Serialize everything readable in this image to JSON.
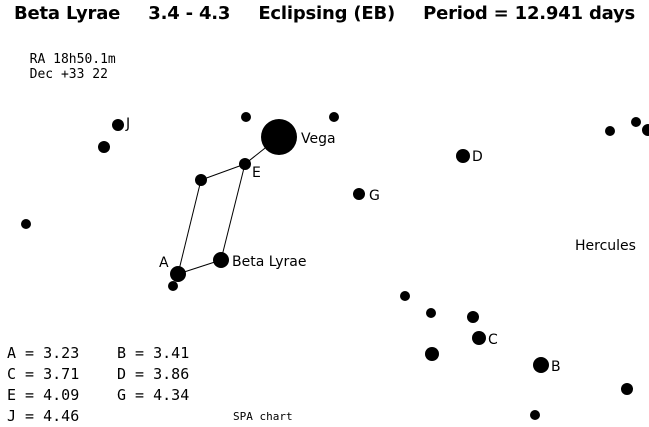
{
  "header": {
    "star_name": "Beta Lyrae",
    "mag_range": "3.4 - 4.3",
    "variable_type": "Eclipsing (EB)",
    "period": "Period = 12.941 days"
  },
  "coords": {
    "ra": "RA 18h50.1m",
    "dec": "Dec +33 22"
  },
  "chart": {
    "labels": {
      "vega": "Vega",
      "beta_lyrae": "Beta Lyrae",
      "hercules": "Hercules",
      "a": "A",
      "b": "B",
      "c": "C",
      "d": "D",
      "e": "E",
      "g": "G",
      "j": "J"
    }
  },
  "magnitudes": [
    [
      "A = 3.23",
      "B = 3.41"
    ],
    [
      "C = 3.71",
      "D = 3.86"
    ],
    [
      "E = 4.09",
      "G = 4.34"
    ],
    [
      "J = 4.46",
      ""
    ]
  ],
  "credit": "SPA chart"
}
